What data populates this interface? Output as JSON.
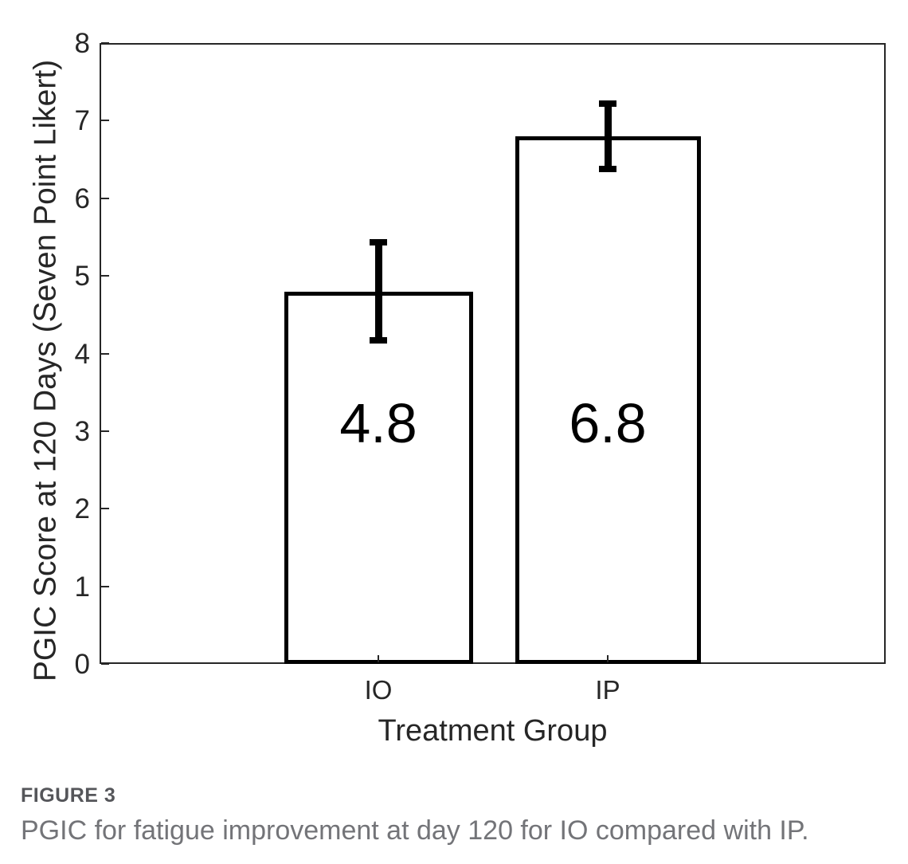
{
  "figure": {
    "label": "FIGURE 3",
    "caption": "PGIC for fatigue improvement at day 120 for IO compared with IP."
  },
  "chart_data": {
    "type": "bar",
    "categories": [
      "IO",
      "IP"
    ],
    "values": [
      4.8,
      6.8
    ],
    "bar_labels": [
      "4.8",
      "6.8"
    ],
    "errors_upper": [
      0.63,
      0.42
    ],
    "errors_lower": [
      0.63,
      0.42
    ],
    "title": "",
    "xlabel": "Treatment Group",
    "ylabel": "PGIC Score at 120 Days (Seven Point Likert)",
    "ylim": [
      0,
      8
    ],
    "yticks": [
      0,
      1,
      2,
      3,
      4,
      5,
      6,
      7,
      8
    ],
    "grid": false,
    "legend": null,
    "colors": {
      "bar_fill": "#ffffff",
      "bar_border": "#000000",
      "axis": "#262626",
      "tick_text": "#262626",
      "figure_label": "#55565a",
      "caption_text": "#737478"
    }
  }
}
